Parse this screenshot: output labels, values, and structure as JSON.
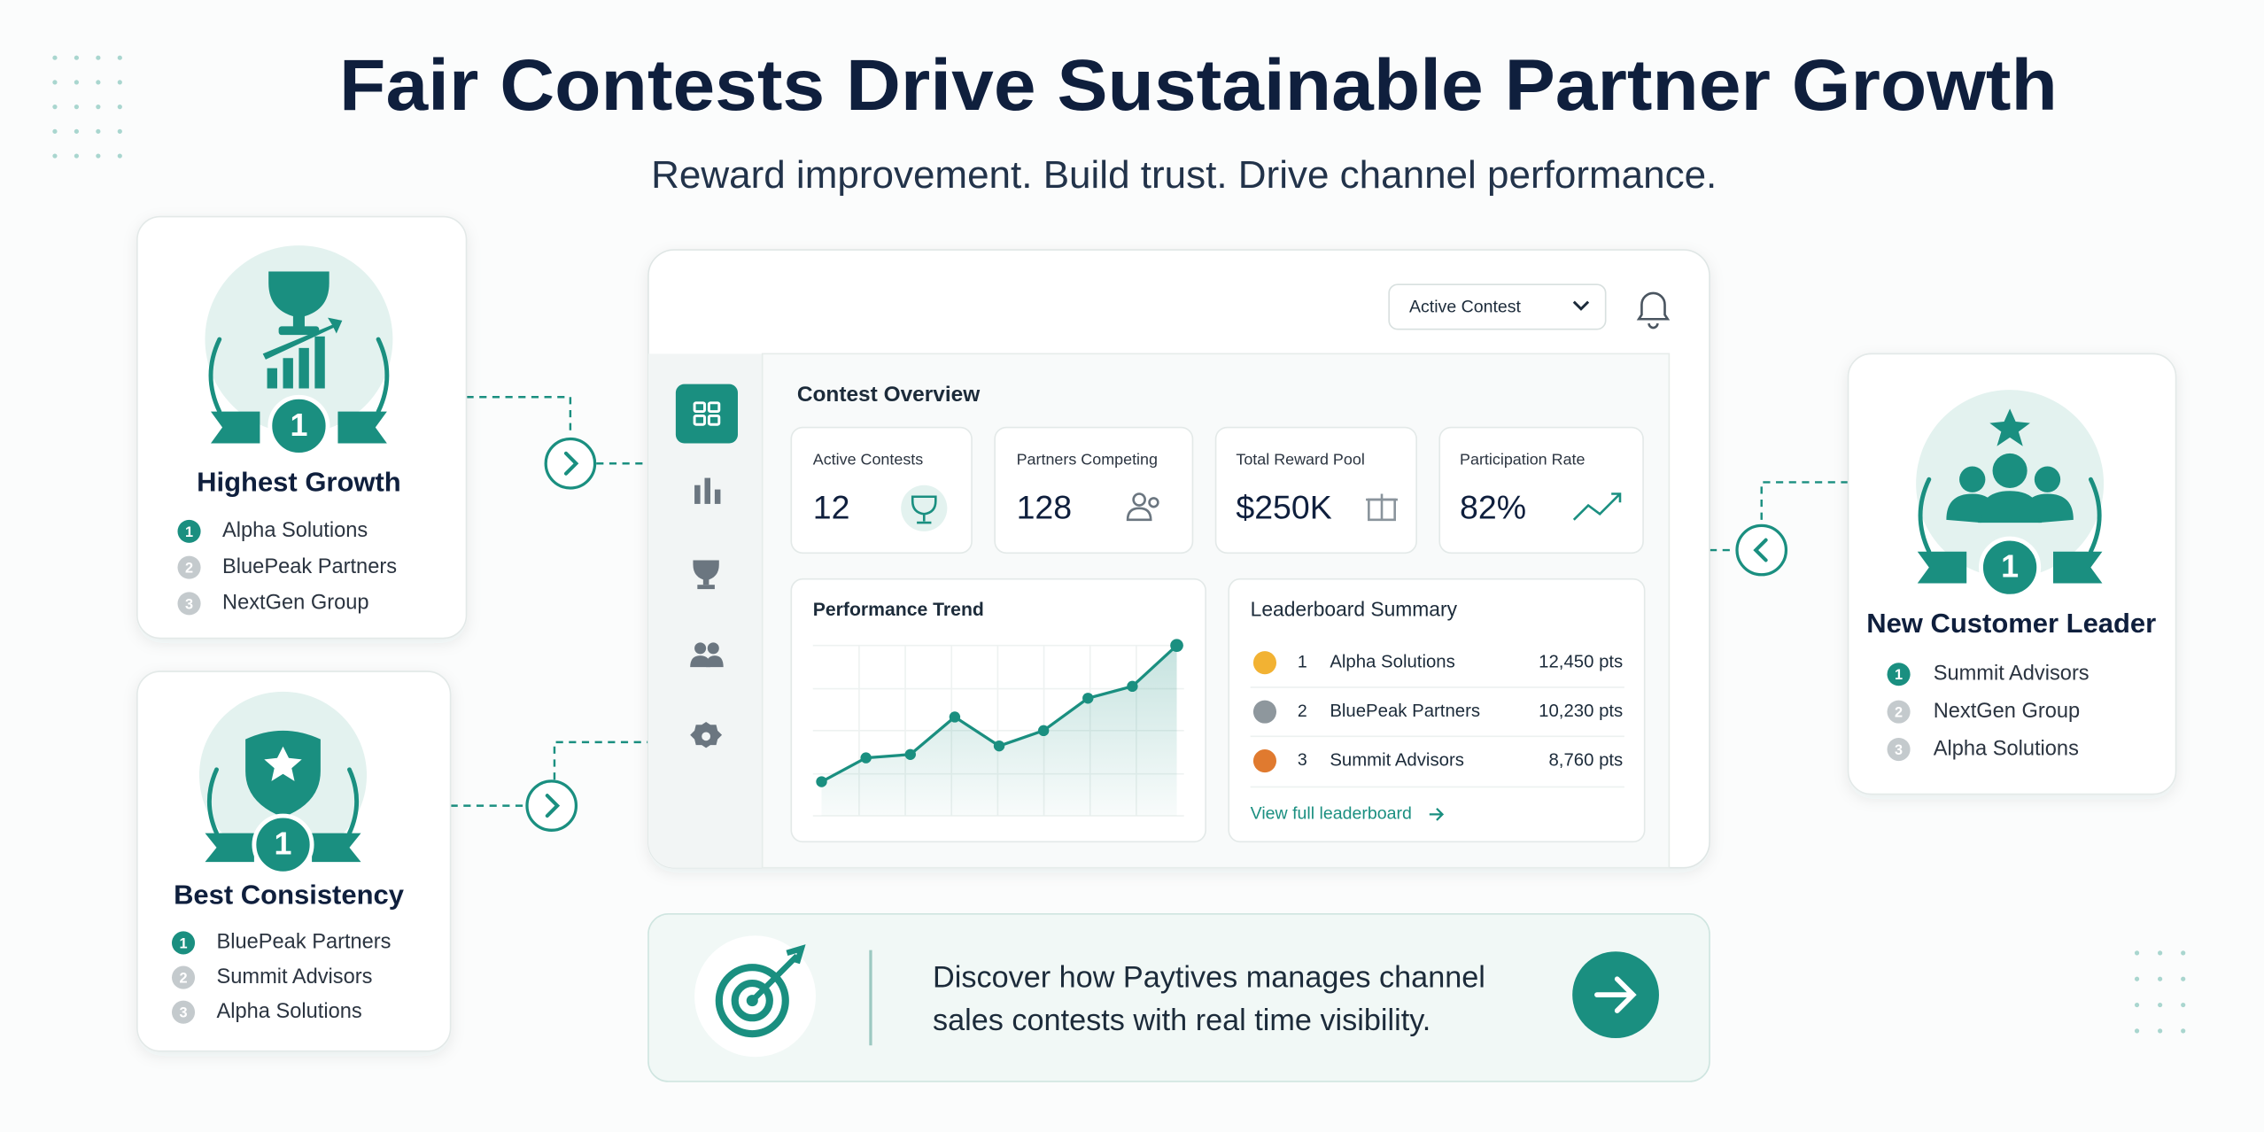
{
  "header": {
    "title": "Fair Contests Drive Sustainable Partner Growth",
    "subtitle": "Reward improvement. Build trust. Drive channel performance."
  },
  "awards": [
    {
      "medal": "1",
      "title": "Highest Growth",
      "entries": [
        {
          "rank": "1",
          "name": "Alpha Solutions"
        },
        {
          "rank": "2",
          "name": "BluePeak Partners"
        },
        {
          "rank": "3",
          "name": "NextGen Group"
        }
      ]
    },
    {
      "medal": "1",
      "title": "Best Consistency",
      "entries": [
        {
          "rank": "1",
          "name": "BluePeak Partners"
        },
        {
          "rank": "2",
          "name": "Summit Advisors"
        },
        {
          "rank": "3",
          "name": "Alpha Solutions"
        }
      ]
    },
    {
      "medal": "1",
      "title": "New Customer Leader",
      "entries": [
        {
          "rank": "1",
          "name": "Summit Advisors"
        },
        {
          "rank": "2",
          "name": "NextGen Group"
        },
        {
          "rank": "3",
          "name": "Alpha Solutions"
        }
      ]
    }
  ],
  "dashboard": {
    "dropdown": "Active Contest",
    "overview_title": "Contest Overview",
    "stats": [
      {
        "label": "Active Contests",
        "value": "12"
      },
      {
        "label": "Partners Competing",
        "value": "128"
      },
      {
        "label": "Total Reward Pool",
        "value": "$250K"
      },
      {
        "label": "Participation Rate",
        "value": "82%"
      }
    ],
    "trend": {
      "title": "Performance Trend",
      "values": [
        20,
        34,
        36,
        58,
        41,
        50,
        69,
        76,
        100
      ],
      "ylim": [
        0,
        100
      ]
    },
    "leaderboard": {
      "title": "Leaderboard Summary",
      "rows": [
        {
          "rank": "1",
          "name": "Alpha Solutions",
          "points": "12,450 pts"
        },
        {
          "rank": "2",
          "name": "BluePeak Partners",
          "points": "10,230 pts"
        },
        {
          "rank": "3",
          "name": "Summit Advisors",
          "points": "8,760 pts"
        }
      ],
      "link": "View full leaderboard"
    }
  },
  "cta": {
    "lines": [
      "Discover how Paytives manages channel",
      "sales contests with real time visibility."
    ]
  }
}
